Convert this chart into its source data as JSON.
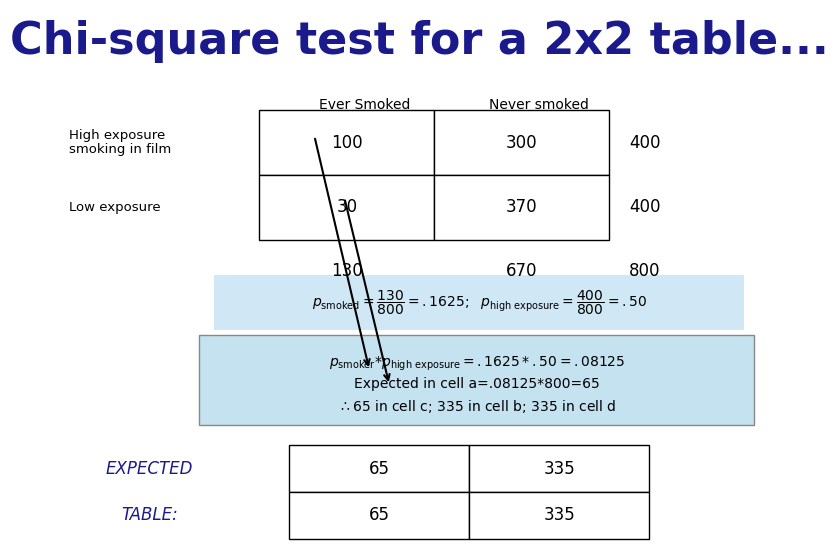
{
  "title": "Chi-square test for a 2x2 table...",
  "title_color": "#1a1a8c",
  "title_fontsize": 32,
  "bg_color": "#ffffff",
  "col_headers": [
    "Ever Smoked",
    "Never smoked"
  ],
  "row_labels": [
    "High exposure\nsmoking in film",
    "Low exposure"
  ],
  "observed_table": [
    [
      100,
      300
    ],
    [
      30,
      370
    ]
  ],
  "row_totals": [
    400,
    400
  ],
  "col_totals": [
    130,
    670
  ],
  "grand_total": 800,
  "formula_bg": "#d0e8f5",
  "box2_bg": "#c5e2f0",
  "expected_table": [
    [
      65,
      335
    ],
    [
      65,
      335
    ]
  ],
  "expected_label_color": "#1a1a8c",
  "arrow_color": "#000000"
}
